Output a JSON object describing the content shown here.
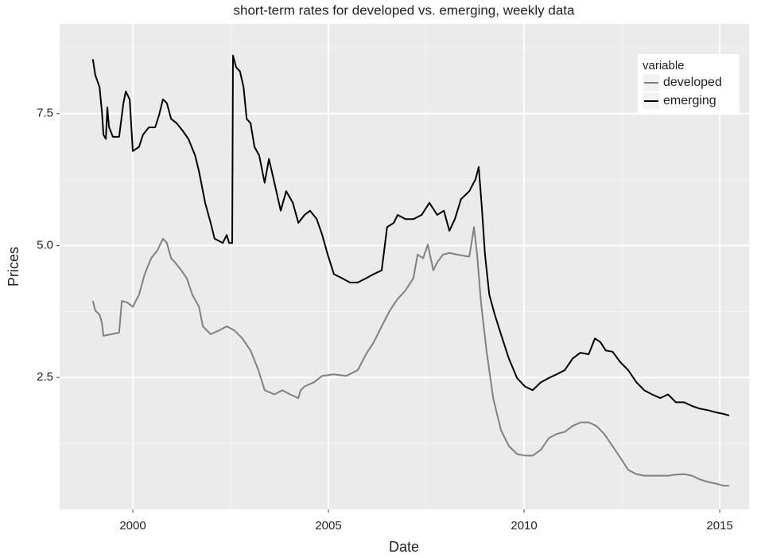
{
  "chart_data": {
    "type": "line",
    "title": "short-term rates for developed vs. emerging, weekly data",
    "x_label": "Date",
    "y_label": "Prices",
    "xlim": [
      1998.13,
      2015.75
    ],
    "ylim": [
      0,
      9.2
    ],
    "xticks": [
      2000,
      2005,
      2010,
      2015
    ],
    "yticks": [
      2.5,
      {
        "value": 5,
        "label": "5.0"
      },
      7.5
    ],
    "xminor": [
      2002.5,
      2007.5,
      2012.5
    ],
    "yminor": [
      1.25,
      3.75,
      6.25,
      8.75
    ],
    "grid": true,
    "legend": "top-right",
    "legend_title": "variable",
    "series": [
      {
        "name": "developed",
        "color": "#808080",
        "x": [
          1998.98,
          1999.04,
          1999.15,
          1999.21,
          1999.25,
          1999.45,
          1999.65,
          1999.72,
          1999.86,
          2000.0,
          2000.16,
          2000.3,
          2000.47,
          2000.63,
          2000.77,
          2000.87,
          2000.98,
          2001.08,
          2001.24,
          2001.38,
          2001.52,
          2001.69,
          2001.79,
          2001.99,
          2002.2,
          2002.4,
          2002.6,
          2002.8,
          2003.01,
          2003.21,
          2003.37,
          2003.62,
          2003.82,
          2004.02,
          2004.23,
          2004.29,
          2004.39,
          2004.63,
          2004.84,
          2005.14,
          2005.45,
          2005.75,
          2005.96,
          2006.16,
          2006.36,
          2006.57,
          2006.77,
          2006.97,
          2007.17,
          2007.28,
          2007.42,
          2007.54,
          2007.68,
          2007.78,
          2007.93,
          2008.09,
          2008.29,
          2008.5,
          2008.6,
          2008.72,
          2008.8,
          2008.9,
          2009.04,
          2009.21,
          2009.41,
          2009.61,
          2009.82,
          2010.02,
          2010.22,
          2010.43,
          2010.63,
          2010.83,
          2011.04,
          2011.24,
          2011.44,
          2011.65,
          2011.85,
          2012.05,
          2012.26,
          2012.46,
          2012.66,
          2012.87,
          2013.07,
          2013.27,
          2013.48,
          2013.68,
          2013.88,
          2014.09,
          2014.29,
          2014.49,
          2014.7,
          2014.9,
          2015.1,
          2015.24
        ],
        "values": [
          3.95,
          3.77,
          3.69,
          3.54,
          3.29,
          3.32,
          3.35,
          3.95,
          3.92,
          3.84,
          4.07,
          4.45,
          4.76,
          4.91,
          5.13,
          5.05,
          4.76,
          4.68,
          4.53,
          4.38,
          4.07,
          3.84,
          3.47,
          3.32,
          3.39,
          3.47,
          3.39,
          3.24,
          3.01,
          2.64,
          2.26,
          2.18,
          2.26,
          2.18,
          2.11,
          2.26,
          2.33,
          2.41,
          2.53,
          2.56,
          2.53,
          2.64,
          2.94,
          3.17,
          3.47,
          3.77,
          3.99,
          4.15,
          4.38,
          4.83,
          4.76,
          5.02,
          4.53,
          4.68,
          4.83,
          4.86,
          4.83,
          4.8,
          4.79,
          5.35,
          4.83,
          3.92,
          3.01,
          2.11,
          1.5,
          1.2,
          1.05,
          1.02,
          1.02,
          1.13,
          1.35,
          1.43,
          1.47,
          1.58,
          1.65,
          1.65,
          1.58,
          1.43,
          1.2,
          0.98,
          0.75,
          0.67,
          0.64,
          0.64,
          0.64,
          0.64,
          0.66,
          0.67,
          0.64,
          0.57,
          0.52,
          0.49,
          0.45,
          0.45
        ]
      },
      {
        "name": "emerging",
        "color": "#000000",
        "x": [
          1998.98,
          1999.04,
          1999.15,
          1999.21,
          1999.25,
          1999.31,
          1999.35,
          1999.39,
          1999.49,
          1999.65,
          1999.76,
          1999.82,
          1999.92,
          2000.0,
          2000.16,
          2000.26,
          2000.41,
          2000.57,
          2000.67,
          2000.77,
          2000.87,
          2000.98,
          2001.12,
          2001.28,
          2001.42,
          2001.59,
          2001.69,
          2001.85,
          2001.99,
          2002.09,
          2002.3,
          2002.4,
          2002.46,
          2002.54,
          2002.56,
          2002.64,
          2002.74,
          2002.83,
          2002.91,
          2003.01,
          2003.11,
          2003.23,
          2003.37,
          2003.48,
          2003.62,
          2003.78,
          2003.92,
          2004.09,
          2004.23,
          2004.39,
          2004.53,
          2004.7,
          2004.84,
          2004.98,
          2005.14,
          2005.35,
          2005.55,
          2005.75,
          2005.96,
          2006.16,
          2006.36,
          2006.5,
          2006.67,
          2006.77,
          2006.97,
          2007.17,
          2007.38,
          2007.58,
          2007.78,
          2007.95,
          2008.09,
          2008.23,
          2008.39,
          2008.6,
          2008.76,
          2008.84,
          2008.92,
          2009.0,
          2009.11,
          2009.25,
          2009.41,
          2009.61,
          2009.82,
          2010.02,
          2010.22,
          2010.43,
          2010.63,
          2010.83,
          2011.04,
          2011.24,
          2011.44,
          2011.65,
          2011.81,
          2011.95,
          2012.09,
          2012.26,
          2012.46,
          2012.66,
          2012.87,
          2013.07,
          2013.27,
          2013.48,
          2013.68,
          2013.88,
          2014.09,
          2014.29,
          2014.49,
          2014.7,
          2014.9,
          2015.1,
          2015.24
        ],
        "values": [
          8.53,
          8.23,
          8.0,
          7.55,
          7.1,
          7.02,
          7.62,
          7.25,
          7.06,
          7.06,
          7.7,
          7.92,
          7.77,
          6.79,
          6.87,
          7.1,
          7.24,
          7.24,
          7.47,
          7.77,
          7.7,
          7.4,
          7.32,
          7.17,
          7.02,
          6.71,
          6.41,
          5.81,
          5.43,
          5.13,
          5.05,
          5.2,
          5.05,
          5.05,
          8.6,
          8.38,
          8.3,
          8.0,
          7.4,
          7.32,
          6.87,
          6.71,
          6.19,
          6.64,
          6.19,
          5.66,
          6.03,
          5.81,
          5.43,
          5.58,
          5.66,
          5.5,
          5.2,
          4.83,
          4.46,
          4.38,
          4.3,
          4.3,
          4.38,
          4.46,
          4.53,
          5.35,
          5.43,
          5.58,
          5.5,
          5.5,
          5.58,
          5.81,
          5.58,
          5.66,
          5.28,
          5.5,
          5.88,
          6.03,
          6.26,
          6.49,
          5.73,
          4.83,
          4.07,
          3.69,
          3.32,
          2.86,
          2.49,
          2.33,
          2.26,
          2.41,
          2.49,
          2.56,
          2.64,
          2.86,
          2.97,
          2.94,
          3.24,
          3.17,
          3.01,
          2.99,
          2.79,
          2.64,
          2.41,
          2.26,
          2.18,
          2.11,
          2.18,
          2.03,
          2.03,
          1.96,
          1.91,
          1.88,
          1.84,
          1.81,
          1.78
        ]
      }
    ]
  }
}
